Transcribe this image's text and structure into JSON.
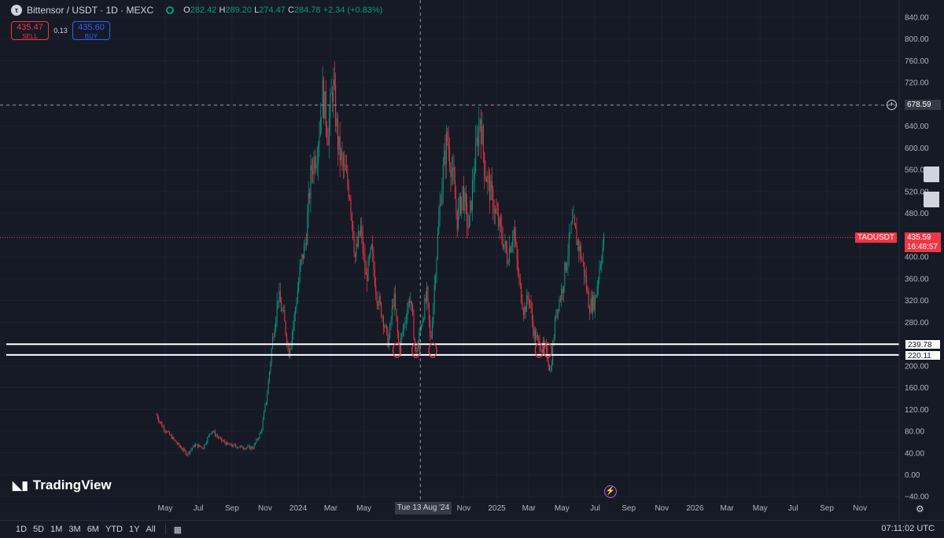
{
  "header": {
    "symbol_title": "Bittensor / USDT · 1D · MEXC",
    "ohlc": [
      {
        "label": "O",
        "value": "282.42"
      },
      {
        "label": "H",
        "value": "289.20"
      },
      {
        "label": "L",
        "value": "274.47"
      },
      {
        "label": "C",
        "value": "284.78"
      },
      {
        "label": "",
        "value": "+2.34 (+0.83%)"
      }
    ]
  },
  "trade": {
    "sell_price": "435.47",
    "sell_label": "SELL",
    "spread": "0.13",
    "buy_price": "435.60",
    "buy_label": "BUY"
  },
  "price_labels": {
    "symbol": "TAOUSDT",
    "last": "435.59",
    "countdown": "16:48:57",
    "crosshair": "678.59",
    "level_upper": "239.78",
    "level_lower": "220.11"
  },
  "crosshair_date": "Tue 13 Aug '24",
  "branding": {
    "logo_text": "TradingView"
  },
  "range_buttons": [
    "1D",
    "5D",
    "1M",
    "3M",
    "6M",
    "YTD",
    "1Y",
    "All"
  ],
  "clock": "07:11:02 UTC",
  "colors": {
    "up": "#089981",
    "down": "#f23645",
    "background": "#161a25",
    "level_line": "#ffffff",
    "marker": "#f23645"
  },
  "chart_data": {
    "type": "candlestick",
    "title": "Bittensor / USDT · 1D · MEXC",
    "x_ticks": [
      "May",
      "Jul",
      "Sep",
      "Nov",
      "2024",
      "Mar",
      "May",
      "Tue 13 Aug '24",
      "Nov",
      "2025",
      "Mar",
      "May",
      "Jul",
      "Sep",
      "Nov",
      "2026",
      "Mar",
      "May",
      "Jul",
      "Sep",
      "Nov"
    ],
    "y_ticks": [
      840,
      800,
      760,
      720,
      680,
      640,
      600,
      560,
      520,
      480,
      440,
      400,
      360,
      320,
      280,
      240,
      200,
      160,
      120,
      80,
      40,
      0,
      -40
    ],
    "ylim": [
      -40,
      840
    ],
    "horizontal_levels": [
      239.78,
      220.11
    ],
    "last_price": 435.59,
    "crosshair_price": 678.59,
    "close_path": [
      [
        "2023-04-15",
        110
      ],
      [
        "2023-04-25",
        90
      ],
      [
        "2023-05-10",
        72
      ],
      [
        "2023-05-25",
        55
      ],
      [
        "2023-06-10",
        38
      ],
      [
        "2023-06-25",
        55
      ],
      [
        "2023-07-10",
        50
      ],
      [
        "2023-07-25",
        82
      ],
      [
        "2023-08-10",
        65
      ],
      [
        "2023-08-25",
        55
      ],
      [
        "2023-09-10",
        52
      ],
      [
        "2023-09-25",
        50
      ],
      [
        "2023-10-10",
        50
      ],
      [
        "2023-10-25",
        80
      ],
      [
        "2023-11-05",
        150
      ],
      [
        "2023-11-15",
        250
      ],
      [
        "2023-11-25",
        330
      ],
      [
        "2023-12-05",
        290
      ],
      [
        "2023-12-15",
        225
      ],
      [
        "2023-12-25",
        290
      ],
      [
        "2024-01-05",
        380
      ],
      [
        "2024-01-15",
        430
      ],
      [
        "2024-01-25",
        560
      ],
      [
        "2024-02-05",
        600
      ],
      [
        "2024-02-15",
        700
      ],
      [
        "2024-02-25",
        630
      ],
      [
        "2024-03-05",
        720
      ],
      [
        "2024-03-15",
        600
      ],
      [
        "2024-03-25",
        560
      ],
      [
        "2024-04-05",
        520
      ],
      [
        "2024-04-15",
        400
      ],
      [
        "2024-04-25",
        450
      ],
      [
        "2024-05-05",
        360
      ],
      [
        "2024-05-15",
        410
      ],
      [
        "2024-05-25",
        330
      ],
      [
        "2024-06-05",
        290
      ],
      [
        "2024-06-15",
        240
      ],
      [
        "2024-06-25",
        330
      ],
      [
        "2024-07-05",
        230
      ],
      [
        "2024-07-15",
        280
      ],
      [
        "2024-07-25",
        330
      ],
      [
        "2024-08-05",
        220
      ],
      [
        "2024-08-15",
        280
      ],
      [
        "2024-08-25",
        330
      ],
      [
        "2024-09-01",
        240
      ],
      [
        "2024-09-10",
        380
      ],
      [
        "2024-09-20",
        520
      ],
      [
        "2024-10-01",
        620
      ],
      [
        "2024-10-10",
        560
      ],
      [
        "2024-10-20",
        470
      ],
      [
        "2024-10-30",
        520
      ],
      [
        "2024-11-10",
        450
      ],
      [
        "2024-11-20",
        560
      ],
      [
        "2024-12-01",
        660
      ],
      [
        "2024-12-10",
        560
      ],
      [
        "2024-12-20",
        520
      ],
      [
        "2025-01-01",
        470
      ],
      [
        "2025-01-10",
        440
      ],
      [
        "2025-01-20",
        400
      ],
      [
        "2025-02-01",
        450
      ],
      [
        "2025-02-10",
        360
      ],
      [
        "2025-02-20",
        300
      ],
      [
        "2025-03-01",
        330
      ],
      [
        "2025-03-10",
        260
      ],
      [
        "2025-03-20",
        240
      ],
      [
        "2025-04-01",
        230
      ],
      [
        "2025-04-10",
        190
      ],
      [
        "2025-04-20",
        300
      ],
      [
        "2025-05-01",
        340
      ],
      [
        "2025-05-10",
        400
      ],
      [
        "2025-05-20",
        460
      ],
      [
        "2025-06-01",
        420
      ],
      [
        "2025-06-10",
        380
      ],
      [
        "2025-06-20",
        310
      ],
      [
        "2025-07-01",
        320
      ],
      [
        "2025-07-10",
        390
      ],
      [
        "2025-07-18",
        435.59
      ]
    ],
    "marked_lows": [
      "2024-07-01",
      "2024-08-05",
      "2024-09-05",
      "2025-03-20",
      "2025-04-05"
    ]
  }
}
